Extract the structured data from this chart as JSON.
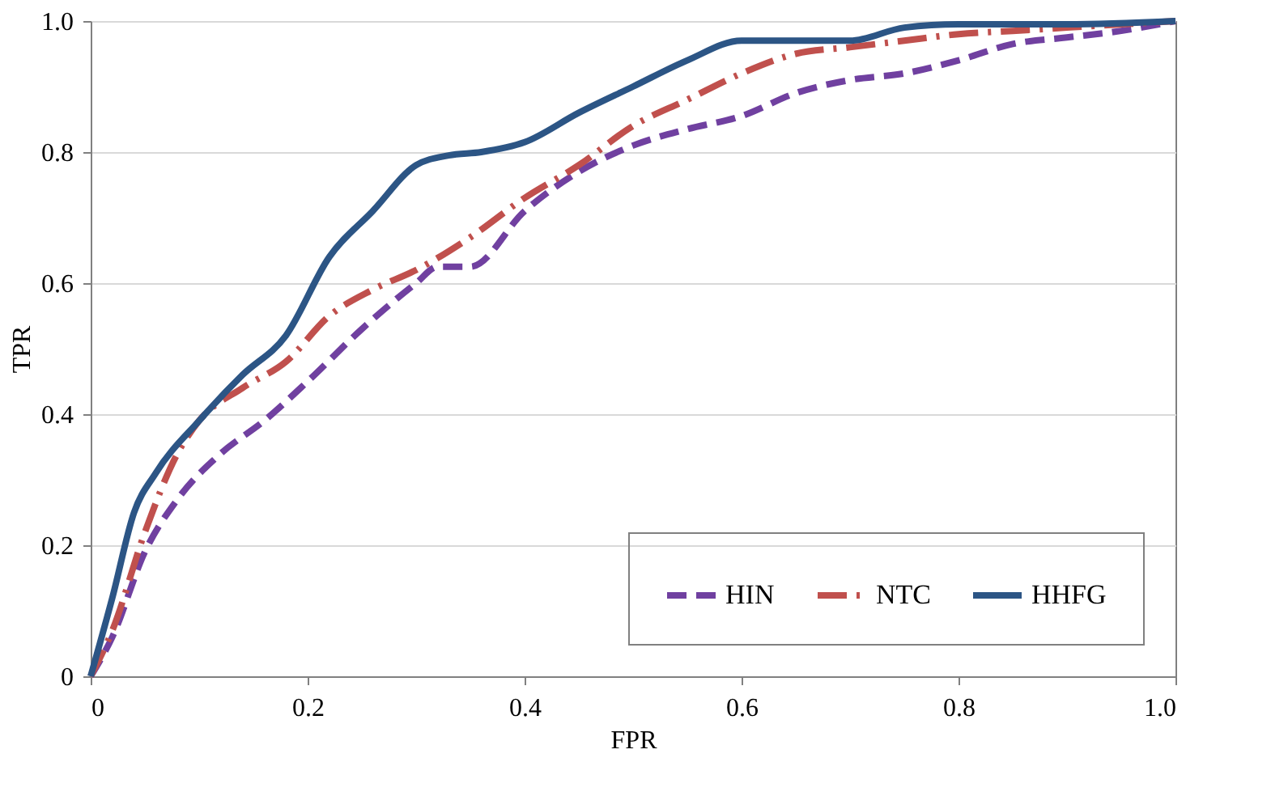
{
  "chart_data": {
    "type": "line",
    "xlabel": "FPR",
    "ylabel": "TPR",
    "xlim": [
      0,
      1
    ],
    "ylim": [
      0,
      1
    ],
    "xticks": [
      0,
      0.2,
      0.4,
      0.6,
      0.8,
      {
        "value": 1,
        "label": "1.0"
      }
    ],
    "yticks": [
      0,
      0.2,
      0.4,
      0.6,
      0.8,
      {
        "value": 1,
        "label": "1.0"
      }
    ],
    "grid": "y",
    "legend": "bottom right",
    "marker": "none",
    "series": [
      {
        "name": "HIN",
        "color": "#7040a0",
        "line_style": "dashed",
        "x": [
          0,
          0.02,
          0.05,
          0.08,
          0.12,
          0.16,
          0.2,
          0.25,
          0.3,
          0.32,
          0.35,
          0.4,
          0.45,
          0.5,
          0.55,
          0.6,
          0.65,
          0.7,
          0.75,
          0.8,
          0.85,
          0.9,
          0.95,
          1.0
        ],
        "values": [
          0,
          0.06,
          0.19,
          0.27,
          0.34,
          0.39,
          0.45,
          0.53,
          0.6,
          0.625,
          0.625,
          0.71,
          0.77,
          0.81,
          0.835,
          0.855,
          0.89,
          0.91,
          0.92,
          0.94,
          0.965,
          0.975,
          0.985,
          1.0
        ]
      },
      {
        "name": "NTC",
        "color": "#c0504d",
        "line_style": "dashdot",
        "x": [
          0,
          0.02,
          0.05,
          0.08,
          0.1,
          0.14,
          0.18,
          0.22,
          0.26,
          0.3,
          0.35,
          0.4,
          0.45,
          0.5,
          0.55,
          0.6,
          0.65,
          0.7,
          0.75,
          0.8,
          0.85,
          0.9,
          1.0
        ],
        "values": [
          0,
          0.07,
          0.22,
          0.34,
          0.39,
          0.44,
          0.48,
          0.55,
          0.59,
          0.62,
          0.67,
          0.73,
          0.78,
          0.84,
          0.88,
          0.92,
          0.95,
          0.96,
          0.97,
          0.98,
          0.985,
          0.99,
          1.0
        ]
      },
      {
        "name": "HHFG",
        "color": "#2c5585",
        "line_style": "solid",
        "x": [
          0,
          0.02,
          0.04,
          0.06,
          0.1,
          0.14,
          0.18,
          0.22,
          0.26,
          0.3,
          0.33,
          0.36,
          0.4,
          0.45,
          0.5,
          0.55,
          0.6,
          0.65,
          0.7,
          0.75,
          0.8,
          0.9,
          1.0
        ],
        "values": [
          0,
          0.12,
          0.25,
          0.31,
          0.39,
          0.46,
          0.52,
          0.64,
          0.71,
          0.78,
          0.795,
          0.8,
          0.815,
          0.86,
          0.9,
          0.94,
          0.97,
          0.97,
          0.97,
          0.99,
          0.995,
          0.995,
          1.0
        ]
      }
    ]
  }
}
